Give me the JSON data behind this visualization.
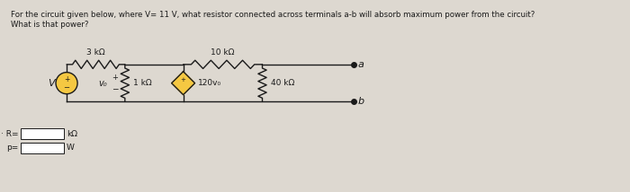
{
  "title_line1": "For the circuit given below, where V= 11 V, what resistor connected across terminals a-b will absorb maximum power from the circuit?",
  "title_line2": "What is that power?",
  "bg_color": "#ddd8d0",
  "text_color": "#1a1a1a",
  "fig_width": 7.0,
  "fig_height": 2.14,
  "answer_label_R": "R=",
  "answer_label_p": "p=",
  "answer_unit_R": "kΩ",
  "answer_unit_p": "W",
  "resistor_3k_label": "3 kΩ",
  "resistor_1k_label": "1 kΩ",
  "resistor_10k_label": "10 kΩ",
  "resistor_40k_label": "40 kΩ",
  "dep_source_label": "120v₀",
  "voltage_label": "V",
  "vx_label": "v₀",
  "plus_label": "+",
  "minus_label": "−",
  "terminal_a": "a",
  "terminal_b": "b",
  "source_fill": "#f5c842",
  "dep_source_fill": "#f5c842"
}
